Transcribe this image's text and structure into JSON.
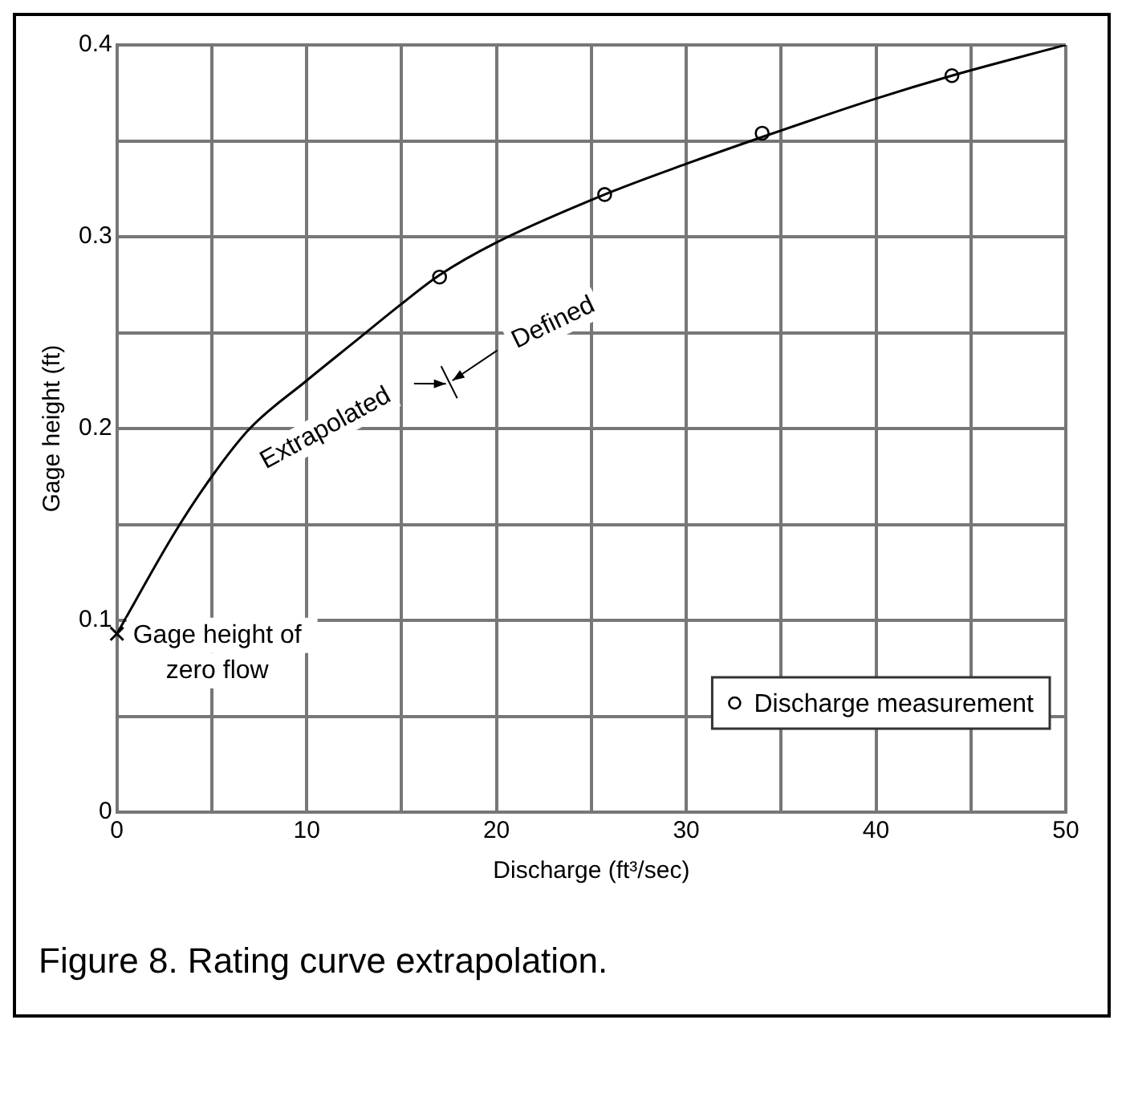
{
  "chart_data": {
    "type": "line",
    "xlabel": "Discharge (ft³/sec)",
    "ylabel": "Gage height (ft)",
    "xlim": [
      0,
      50
    ],
    "ylim": [
      0,
      0.4
    ],
    "xticks": [
      0,
      {
        "value": 5,
        "label": null
      },
      10,
      {
        "value": 15,
        "label": null
      },
      20,
      {
        "value": 25,
        "label": null
      },
      30,
      {
        "value": 35,
        "label": null
      },
      40,
      {
        "value": 45,
        "label": null
      },
      50
    ],
    "yticks": [
      0,
      {
        "value": 0.05,
        "label": null
      },
      0.1,
      {
        "value": 0.15,
        "label": null
      },
      0.2,
      {
        "value": 0.25,
        "label": null
      },
      0.3,
      {
        "value": 0.35,
        "label": null
      },
      0.4
    ],
    "grid": true,
    "legend": "bottom right",
    "series": [
      {
        "type": "line",
        "color": "#000000",
        "marker": "none",
        "x": [
          0,
          3,
          5,
          7,
          10,
          12.5,
          15,
          17,
          20,
          25.7,
          30,
          34,
          40,
          44,
          50
        ],
        "values": [
          0.093,
          0.145,
          0.175,
          0.2,
          0.225,
          0.245,
          0.265,
          0.28,
          0.297,
          0.322,
          0.338,
          0.352,
          0.372,
          0.384,
          0.4
        ]
      },
      {
        "type": "scatter",
        "name": "Discharge measurement",
        "color": "#000000",
        "marker": "circle",
        "x": [
          17,
          25.7,
          34,
          44
        ],
        "values": [
          0.279,
          0.322,
          0.354,
          0.384
        ]
      }
    ],
    "annotations": [
      {
        "text": "Gage height of zero flow",
        "x": 0,
        "y": 0.093
      },
      "Extrapolated",
      "Defined",
      "Figure 8. Rating curve extrapolation."
    ]
  }
}
